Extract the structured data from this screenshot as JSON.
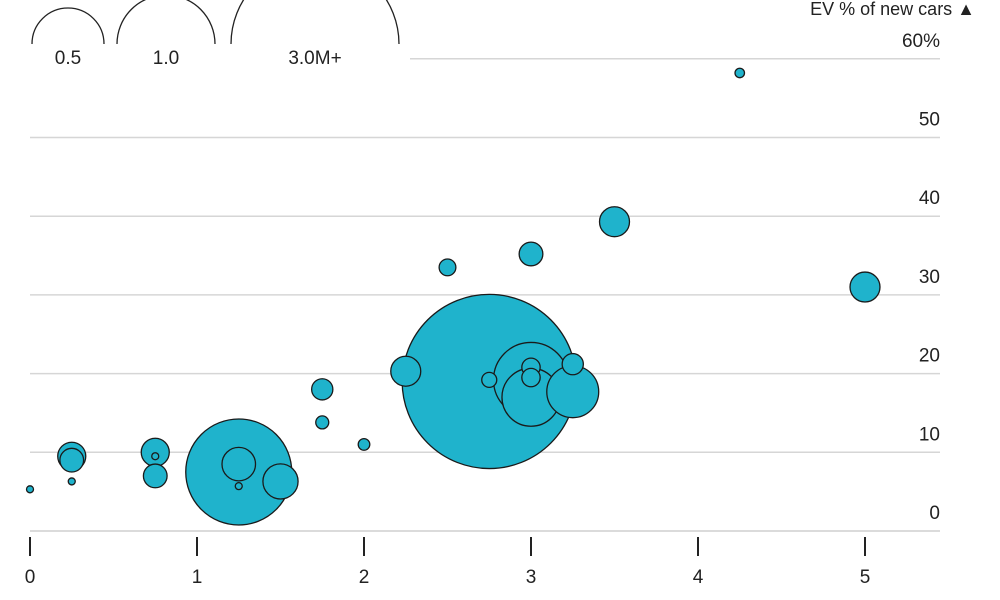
{
  "chart_data": {
    "type": "scatter",
    "title": "",
    "xlabel": "",
    "ylabel": "EV % of new cars ▲",
    "xlim": [
      0,
      5.2
    ],
    "ylim": [
      0,
      60
    ],
    "x_ticks": [
      0,
      1,
      2,
      3,
      4,
      5
    ],
    "y_ticks": [
      {
        "value": 0,
        "label": "0"
      },
      {
        "value": 10,
        "label": "10"
      },
      {
        "value": 20,
        "label": "20"
      },
      {
        "value": 30,
        "label": "30"
      },
      {
        "value": 40,
        "label": "40"
      },
      {
        "value": 50,
        "label": "50"
      },
      {
        "value": 60,
        "label": "60%"
      }
    ],
    "grid": true,
    "size_legend": {
      "placement": "top-left",
      "entries": [
        {
          "label": "0.5",
          "size": 0.5
        },
        {
          "label": "1.0",
          "size": 1.0
        },
        {
          "label": "3.0M+",
          "size": 3.0
        }
      ]
    },
    "color": "#1fb3cc",
    "points": [
      {
        "x": 0.0,
        "y": 5.3,
        "size": 0.003
      },
      {
        "x": 0.25,
        "y": 9.5,
        "size": 0.07
      },
      {
        "x": 0.25,
        "y": 9.0,
        "size": 0.05
      },
      {
        "x": 0.25,
        "y": 6.3,
        "size": 0.002
      },
      {
        "x": 0.75,
        "y": 10.0,
        "size": 0.07
      },
      {
        "x": 0.75,
        "y": 9.5,
        "size": 0.002
      },
      {
        "x": 0.75,
        "y": 7.0,
        "size": 0.05
      },
      {
        "x": 1.25,
        "y": 7.5,
        "size": 1.0
      },
      {
        "x": 1.25,
        "y": 8.5,
        "size": 0.1
      },
      {
        "x": 1.25,
        "y": 5.7,
        "size": 0.002
      },
      {
        "x": 1.5,
        "y": 6.3,
        "size": 0.11
      },
      {
        "x": 1.75,
        "y": 18.0,
        "size": 0.04
      },
      {
        "x": 1.75,
        "y": 13.8,
        "size": 0.015
      },
      {
        "x": 2.0,
        "y": 11.0,
        "size": 0.012
      },
      {
        "x": 2.25,
        "y": 20.3,
        "size": 0.08
      },
      {
        "x": 2.5,
        "y": 33.5,
        "size": 0.025
      },
      {
        "x": 2.75,
        "y": 19.0,
        "size": 2.7
      },
      {
        "x": 2.75,
        "y": 19.2,
        "size": 0.02
      },
      {
        "x": 3.0,
        "y": 35.2,
        "size": 0.05
      },
      {
        "x": 3.0,
        "y": 19.2,
        "size": 0.5
      },
      {
        "x": 3.0,
        "y": 20.8,
        "size": 0.03
      },
      {
        "x": 3.0,
        "y": 19.5,
        "size": 0.03
      },
      {
        "x": 3.0,
        "y": 17.0,
        "size": 0.3
      },
      {
        "x": 3.25,
        "y": 21.2,
        "size": 0.04
      },
      {
        "x": 3.25,
        "y": 17.7,
        "size": 0.24
      },
      {
        "x": 3.5,
        "y": 39.3,
        "size": 0.08
      },
      {
        "x": 4.25,
        "y": 58.2,
        "size": 0.008
      },
      {
        "x": 5.0,
        "y": 31.0,
        "size": 0.08
      }
    ]
  }
}
